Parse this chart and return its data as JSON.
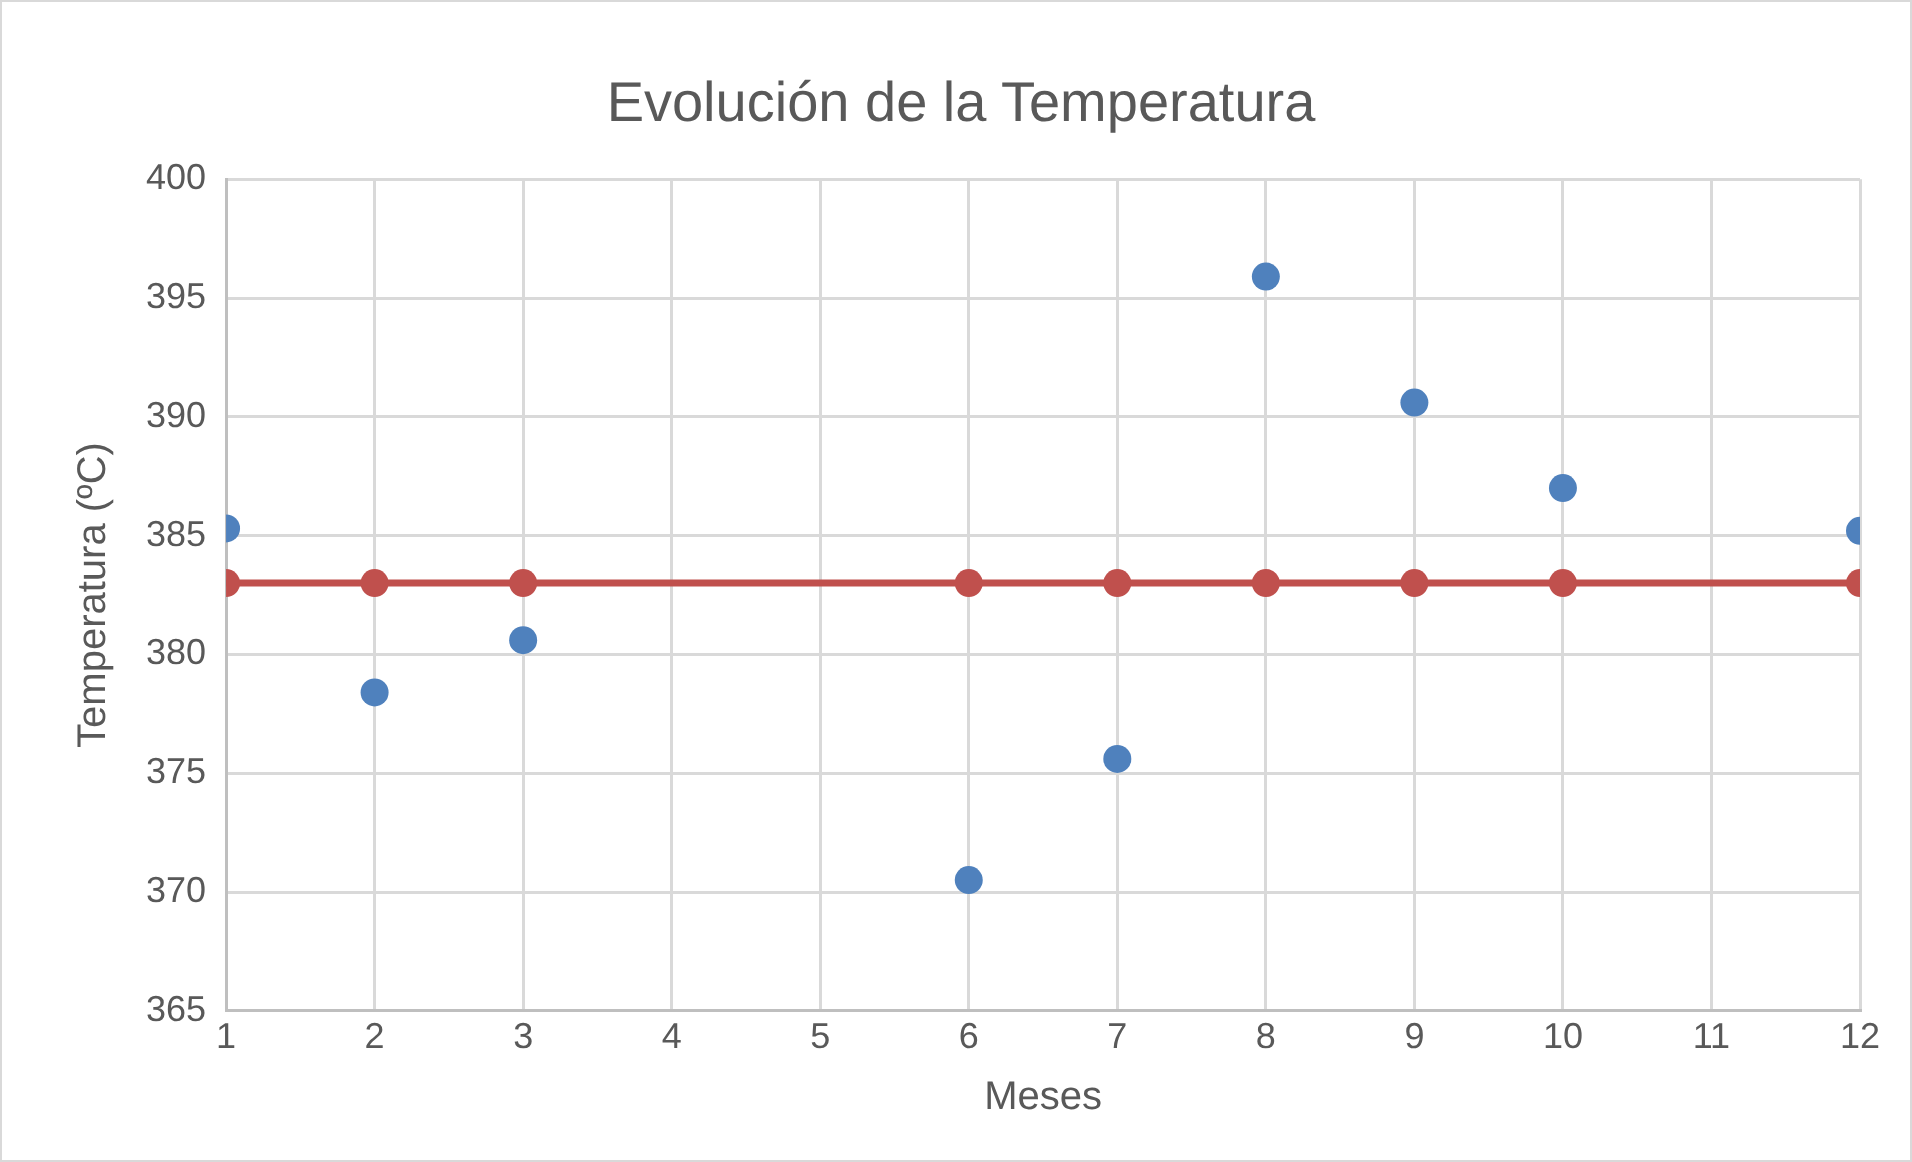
{
  "chart_data": {
    "type": "scatter",
    "title": "Evolución de la Temperatura",
    "xlabel": "Meses",
    "ylabel": "Temperatura (ºC)",
    "x": [
      1,
      2,
      3,
      6,
      7,
      8,
      9,
      10,
      12
    ],
    "series": [
      {
        "color": "#4f81bd",
        "values": [
          385.3,
          378.4,
          380.6,
          370.5,
          375.6,
          395.9,
          390.6,
          387.0,
          385.2
        ]
      },
      {
        "type": "line",
        "color": "#c0504d",
        "values": [
          383,
          383,
          383,
          383,
          383,
          383,
          383,
          383,
          383
        ]
      }
    ],
    "xlim": [
      1,
      12
    ],
    "xticks": [
      1,
      2,
      3,
      4,
      5,
      6,
      7,
      8,
      9,
      10,
      11,
      12
    ],
    "ylim": [
      365,
      400
    ],
    "yticks": [
      365,
      370,
      375,
      380,
      385,
      390,
      395,
      400
    ],
    "grid": true,
    "legend": false,
    "marker": "circle"
  }
}
